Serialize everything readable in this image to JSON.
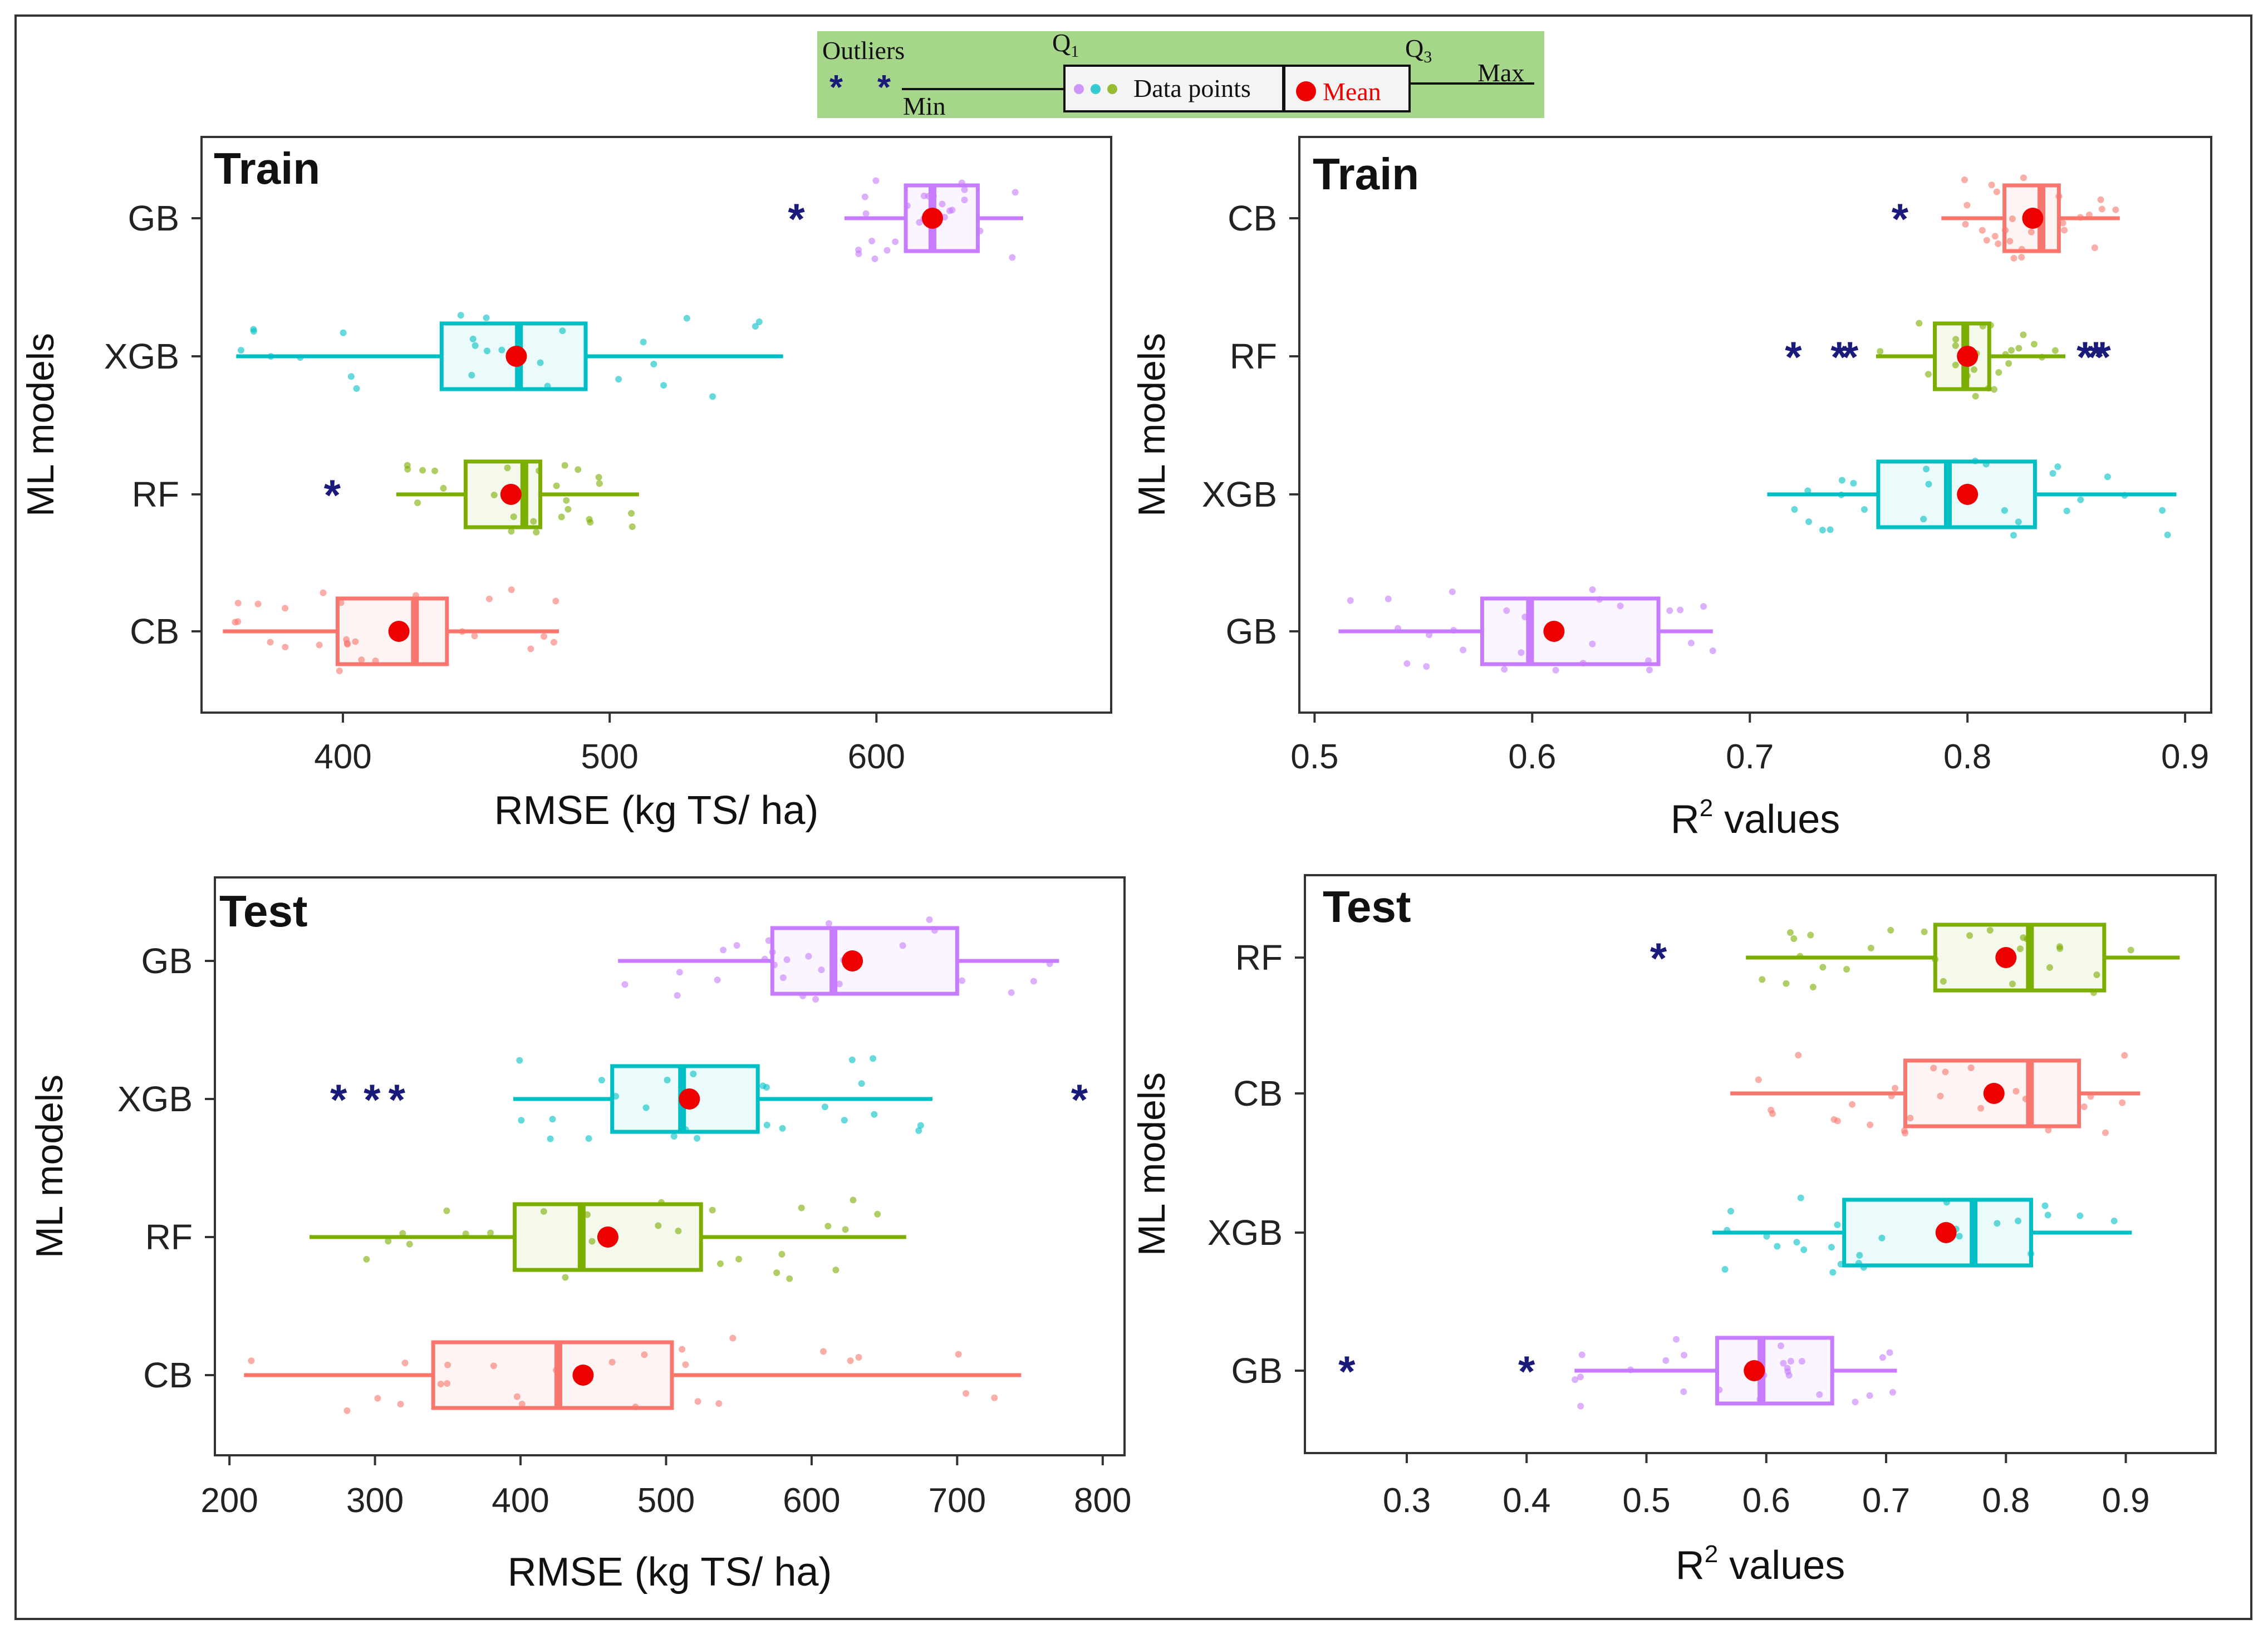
{
  "colors": {
    "GB": "#C77CFF",
    "XGB": "#00BFC4",
    "RF": "#7CAE00",
    "CB": "#F8766D",
    "outlier": "#1A1A7A",
    "mean": "#EE0000",
    "legend_bg": "#A6D68A"
  },
  "legend": {
    "outliers_label": "Outliers",
    "min_label": "Min",
    "q1_label": "Q",
    "q1_sub": "1",
    "data_points_label": "Data points",
    "mean_label": "Mean",
    "q3_label": "Q",
    "q3_sub": "3",
    "max_label": "Max"
  },
  "chart_data": [
    {
      "type": "boxplot",
      "orientation": "horizontal",
      "title": "Train",
      "xlabel": "RMSE (kg TS/ ha)",
      "ylabel": "ML models",
      "xlim": [
        347,
        688
      ],
      "xticks": [
        400,
        500,
        600
      ],
      "categories": [
        "GB",
        "XGB",
        "RF",
        "CB"
      ],
      "boxes": [
        {
          "model": "GB",
          "min": 588,
          "q1": 611,
          "median": 621,
          "q3": 638,
          "max": 655,
          "mean": 621,
          "outliers": [
            570
          ]
        },
        {
          "model": "XGB",
          "min": 360,
          "q1": 437,
          "median": 466,
          "q3": 491,
          "max": 565,
          "mean": 465,
          "outliers": []
        },
        {
          "model": "RF",
          "min": 420,
          "q1": 446,
          "median": 468,
          "q3": 474,
          "max": 511,
          "mean": 463,
          "outliers": [
            396
          ]
        },
        {
          "model": "CB",
          "min": 355,
          "q1": 398,
          "median": 427,
          "q3": 439,
          "max": 481,
          "mean": 421,
          "outliers": []
        }
      ]
    },
    {
      "type": "boxplot",
      "orientation": "horizontal",
      "title": "Train",
      "xlabel": "R",
      "xlabel_sup": "2",
      "xlabel_suffix": " values",
      "ylabel": "ML models",
      "xlim": [
        0.493,
        0.912
      ],
      "xticks": [
        0.5,
        0.6,
        0.7,
        0.8,
        0.9
      ],
      "tick_labels": [
        "0.5",
        "0.6",
        "0.7",
        "0.8",
        "0.9"
      ],
      "categories": [
        "CB",
        "RF",
        "XGB",
        "GB"
      ],
      "boxes": [
        {
          "model": "CB",
          "min": 0.788,
          "q1": 0.817,
          "median": 0.834,
          "q3": 0.842,
          "max": 0.87,
          "mean": 0.83,
          "outliers": [
            0.769
          ]
        },
        {
          "model": "RF",
          "min": 0.758,
          "q1": 0.785,
          "median": 0.799,
          "q3": 0.81,
          "max": 0.845,
          "mean": 0.8,
          "outliers": [
            0.72,
            0.741,
            0.746,
            0.854,
            0.859,
            0.862
          ]
        },
        {
          "model": "XGB",
          "min": 0.708,
          "q1": 0.759,
          "median": 0.791,
          "q3": 0.831,
          "max": 0.896,
          "mean": 0.8,
          "outliers": []
        },
        {
          "model": "GB",
          "min": 0.511,
          "q1": 0.577,
          "median": 0.599,
          "q3": 0.658,
          "max": 0.683,
          "mean": 0.61,
          "outliers": []
        }
      ]
    },
    {
      "type": "boxplot",
      "orientation": "horizontal",
      "title": "Test",
      "xlabel": "RMSE (kg TS/ ha)",
      "ylabel": "ML models",
      "xlim": [
        190,
        815
      ],
      "xticks": [
        200,
        300,
        400,
        500,
        600,
        700,
        800
      ],
      "categories": [
        "GB",
        "XGB",
        "RF",
        "CB"
      ],
      "boxes": [
        {
          "model": "GB",
          "min": 467,
          "q1": 573,
          "median": 615,
          "q3": 700,
          "max": 770,
          "mean": 628,
          "outliers": []
        },
        {
          "model": "XGB",
          "min": 395,
          "q1": 463,
          "median": 511,
          "q3": 563,
          "max": 683,
          "mean": 516,
          "outliers": [
            275,
            298,
            315,
            784
          ]
        },
        {
          "model": "RF",
          "min": 255,
          "q1": 396,
          "median": 442,
          "q3": 524,
          "max": 665,
          "mean": 460,
          "outliers": []
        },
        {
          "model": "CB",
          "min": 210,
          "q1": 340,
          "median": 426,
          "q3": 504,
          "max": 744,
          "mean": 443,
          "outliers": []
        }
      ]
    },
    {
      "type": "boxplot",
      "orientation": "horizontal",
      "title": "Test",
      "xlabel": "R",
      "xlabel_sup": "2",
      "xlabel_suffix": " values",
      "ylabel": "ML models",
      "xlim": [
        0.215,
        0.975
      ],
      "xticks": [
        0.3,
        0.4,
        0.5,
        0.6,
        0.7,
        0.8,
        0.9
      ],
      "tick_labels": [
        "0.3",
        "0.4",
        "0.5",
        "0.6",
        "0.7",
        "0.8",
        "0.9"
      ],
      "categories": [
        "RF",
        "CB",
        "XGB",
        "GB"
      ],
      "boxes": [
        {
          "model": "RF",
          "min": 0.583,
          "q1": 0.741,
          "median": 0.82,
          "q3": 0.882,
          "max": 0.945,
          "mean": 0.8,
          "outliers": [
            0.51
          ]
        },
        {
          "model": "CB",
          "min": 0.57,
          "q1": 0.716,
          "median": 0.82,
          "q3": 0.861,
          "max": 0.912,
          "mean": 0.79,
          "outliers": []
        },
        {
          "model": "XGB",
          "min": 0.555,
          "q1": 0.665,
          "median": 0.773,
          "q3": 0.821,
          "max": 0.905,
          "mean": 0.75,
          "outliers": []
        },
        {
          "model": "GB",
          "min": 0.44,
          "q1": 0.559,
          "median": 0.596,
          "q3": 0.655,
          "max": 0.709,
          "mean": 0.59,
          "outliers": [
            0.25,
            0.4
          ]
        }
      ]
    }
  ]
}
